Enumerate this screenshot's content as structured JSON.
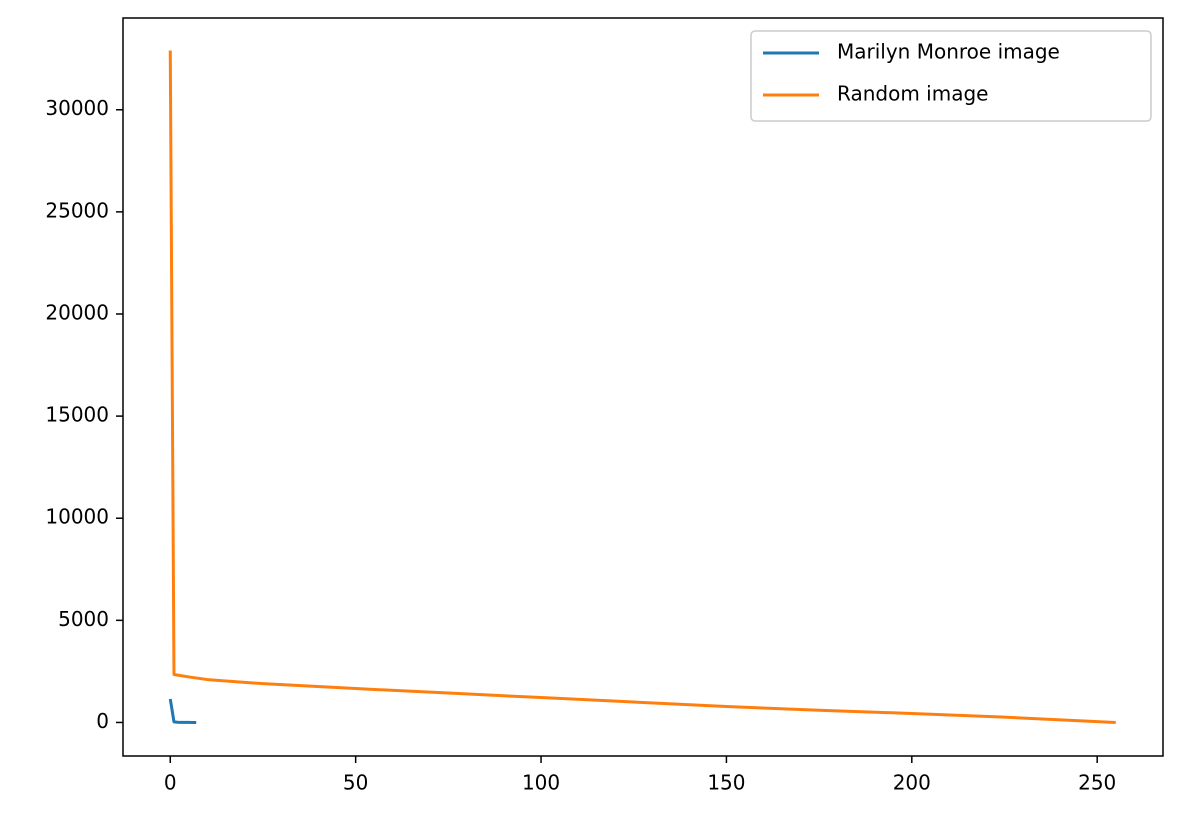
{
  "chart_data": {
    "type": "line",
    "series": [
      {
        "name": "Marilyn Monroe image",
        "color": "#1f77b4",
        "x": [
          0,
          1,
          2,
          3,
          4,
          5,
          6,
          7
        ],
        "values": [
          1150,
          30,
          10,
          5,
          3,
          2,
          1,
          0
        ]
      },
      {
        "name": "Random image",
        "color": "#ff7f0e",
        "x": [
          0,
          1,
          5,
          10,
          25,
          50,
          75,
          100,
          125,
          150,
          175,
          200,
          225,
          255
        ],
        "values": [
          32900,
          2350,
          2230,
          2100,
          1900,
          1660,
          1440,
          1220,
          1000,
          780,
          600,
          440,
          260,
          0
        ]
      }
    ],
    "xlim": [
      -12.75,
      267.75
    ],
    "xticks": [
      0,
      50,
      100,
      150,
      200,
      250
    ],
    "ylim": [
      -1642,
      34492
    ],
    "yticks": [
      0,
      5000,
      10000,
      15000,
      20000,
      25000,
      30000
    ],
    "legend": "upper right"
  }
}
